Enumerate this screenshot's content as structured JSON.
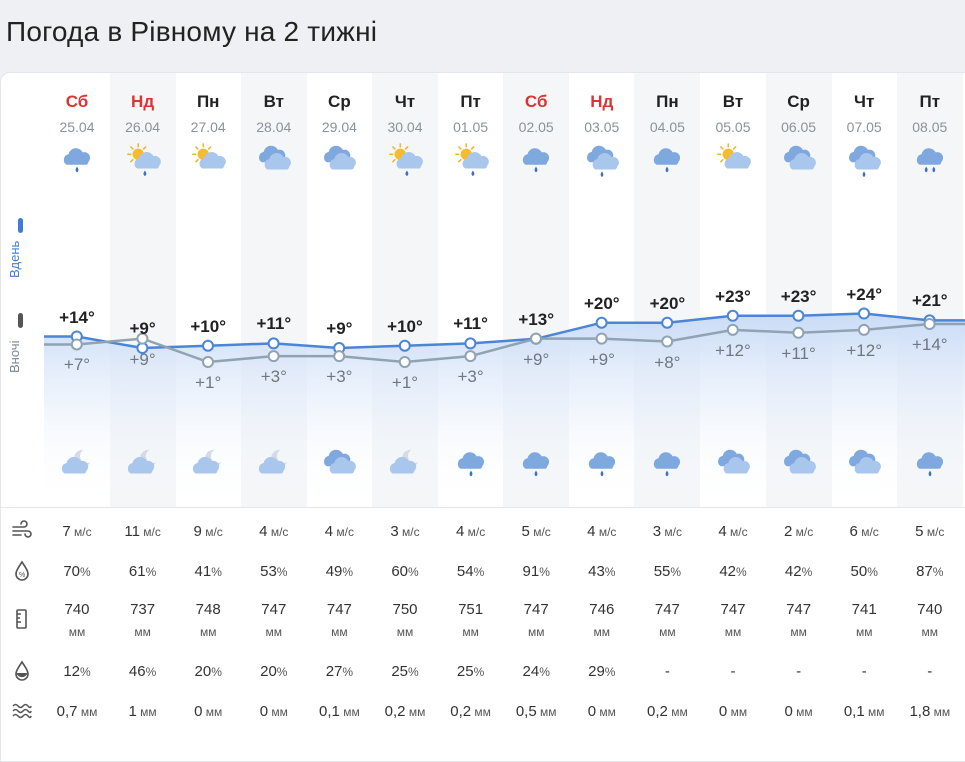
{
  "title": "Погода в Рівному на 2 тижні",
  "side": {
    "day": "Вдень",
    "night": "Вночі"
  },
  "colors": {
    "day_line": "#4a85d8",
    "night_line": "#8fa3b3",
    "weekend": "#dd3333",
    "stripe": "#f4f6f8"
  },
  "days": [
    {
      "dow": "Сб",
      "date": "25.04",
      "weekend": true,
      "day_icon": "cloud-rain-icon",
      "night_icon": "moon-cloud-icon",
      "t_day": "+14°",
      "t_night": "+7°",
      "wind": "7",
      "wind_u": "м/с",
      "hum": "70",
      "hum_u": "%",
      "press": "740",
      "press_u": "мм",
      "precip_p": "12",
      "precip_p_u": "%",
      "precip": "0,7",
      "precip_u": "мм"
    },
    {
      "dow": "Нд",
      "date": "26.04",
      "weekend": true,
      "day_icon": "sun-cloud-rain-icon",
      "night_icon": "moon-cloud-icon",
      "t_day": "+9°",
      "t_night": "+9°",
      "wind": "11",
      "wind_u": "м/с",
      "hum": "61",
      "hum_u": "%",
      "press": "737",
      "press_u": "мм",
      "precip_p": "46",
      "precip_p_u": "%",
      "precip": "1",
      "precip_u": "мм"
    },
    {
      "dow": "Пн",
      "date": "27.04",
      "weekend": false,
      "day_icon": "sun-cloud-icon",
      "night_icon": "moon-cloud-icon",
      "t_day": "+10°",
      "t_night": "+1°",
      "wind": "9",
      "wind_u": "м/с",
      "hum": "41",
      "hum_u": "%",
      "press": "748",
      "press_u": "мм",
      "precip_p": "20",
      "precip_p_u": "%",
      "precip": "0",
      "precip_u": "мм"
    },
    {
      "dow": "Вт",
      "date": "28.04",
      "weekend": false,
      "day_icon": "clouds-icon",
      "night_icon": "moon-cloud-icon",
      "t_day": "+11°",
      "t_night": "+3°",
      "wind": "4",
      "wind_u": "м/с",
      "hum": "53",
      "hum_u": "%",
      "press": "747",
      "press_u": "мм",
      "precip_p": "20",
      "precip_p_u": "%",
      "precip": "0",
      "precip_u": "мм"
    },
    {
      "dow": "Ср",
      "date": "29.04",
      "weekend": false,
      "day_icon": "clouds-icon",
      "night_icon": "clouds-icon",
      "t_day": "+9°",
      "t_night": "+3°",
      "wind": "4",
      "wind_u": "м/с",
      "hum": "49",
      "hum_u": "%",
      "press": "747",
      "press_u": "мм",
      "precip_p": "27",
      "precip_p_u": "%",
      "precip": "0,1",
      "precip_u": "мм"
    },
    {
      "dow": "Чт",
      "date": "30.04",
      "weekend": false,
      "day_icon": "sun-cloud-rain-icon",
      "night_icon": "moon-cloud-icon",
      "t_day": "+10°",
      "t_night": "+1°",
      "wind": "3",
      "wind_u": "м/с",
      "hum": "60",
      "hum_u": "%",
      "press": "750",
      "press_u": "мм",
      "precip_p": "25",
      "precip_p_u": "%",
      "precip": "0,2",
      "precip_u": "мм"
    },
    {
      "dow": "Пт",
      "date": "01.05",
      "weekend": false,
      "day_icon": "sun-cloud-rain-icon",
      "night_icon": "cloud-rain-icon",
      "t_day": "+11°",
      "t_night": "+3°",
      "wind": "4",
      "wind_u": "м/с",
      "hum": "54",
      "hum_u": "%",
      "press": "751",
      "press_u": "мм",
      "precip_p": "25",
      "precip_p_u": "%",
      "precip": "0,2",
      "precip_u": "мм"
    },
    {
      "dow": "Сб",
      "date": "02.05",
      "weekend": true,
      "day_icon": "cloud-rain-icon",
      "night_icon": "cloud-rain-icon",
      "t_day": "+13°",
      "t_night": "+9°",
      "wind": "5",
      "wind_u": "м/с",
      "hum": "91",
      "hum_u": "%",
      "press": "747",
      "press_u": "мм",
      "precip_p": "24",
      "precip_p_u": "%",
      "precip": "0,5",
      "precip_u": "мм"
    },
    {
      "dow": "Нд",
      "date": "03.05",
      "weekend": true,
      "day_icon": "clouds-rain-icon",
      "night_icon": "cloud-rain-icon",
      "t_day": "+20°",
      "t_night": "+9°",
      "wind": "4",
      "wind_u": "м/с",
      "hum": "43",
      "hum_u": "%",
      "press": "746",
      "press_u": "мм",
      "precip_p": "29",
      "precip_p_u": "%",
      "precip": "0",
      "precip_u": "мм"
    },
    {
      "dow": "Пн",
      "date": "04.05",
      "weekend": false,
      "day_icon": "cloud-rain-icon",
      "night_icon": "cloud-rain-icon",
      "t_day": "+20°",
      "t_night": "+8°",
      "wind": "3",
      "wind_u": "м/с",
      "hum": "55",
      "hum_u": "%",
      "press": "747",
      "press_u": "мм",
      "precip_p": "-",
      "precip_p_u": "",
      "precip": "0,2",
      "precip_u": "мм"
    },
    {
      "dow": "Вт",
      "date": "05.05",
      "weekend": false,
      "day_icon": "sun-cloud-icon",
      "night_icon": "clouds-icon",
      "t_day": "+23°",
      "t_night": "+12°",
      "wind": "4",
      "wind_u": "м/с",
      "hum": "42",
      "hum_u": "%",
      "press": "747",
      "press_u": "мм",
      "precip_p": "-",
      "precip_p_u": "",
      "precip": "0",
      "precip_u": "мм"
    },
    {
      "dow": "Ср",
      "date": "06.05",
      "weekend": false,
      "day_icon": "clouds-icon",
      "night_icon": "clouds-icon",
      "t_day": "+23°",
      "t_night": "+11°",
      "wind": "2",
      "wind_u": "м/с",
      "hum": "42",
      "hum_u": "%",
      "press": "747",
      "press_u": "мм",
      "precip_p": "-",
      "precip_p_u": "",
      "precip": "0",
      "precip_u": "мм"
    },
    {
      "dow": "Чт",
      "date": "07.05",
      "weekend": false,
      "day_icon": "clouds-rain-icon",
      "night_icon": "clouds-icon",
      "t_day": "+24°",
      "t_night": "+12°",
      "wind": "6",
      "wind_u": "м/с",
      "hum": "50",
      "hum_u": "%",
      "press": "741",
      "press_u": "мм",
      "precip_p": "-",
      "precip_p_u": "",
      "precip": "0,1",
      "precip_u": "мм"
    },
    {
      "dow": "Пт",
      "date": "08.05",
      "weekend": false,
      "day_icon": "cloud-heavy-rain-icon",
      "night_icon": "cloud-rain-icon",
      "t_day": "+21°",
      "t_night": "+14°",
      "wind": "5",
      "wind_u": "м/с",
      "hum": "87",
      "hum_u": "%",
      "press": "740",
      "press_u": "мм",
      "precip_p": "-",
      "precip_p_u": "",
      "precip": "1,8",
      "precip_u": "мм"
    }
  ],
  "chart_data": {
    "type": "line",
    "categories": [
      "25.04",
      "26.04",
      "27.04",
      "28.04",
      "29.04",
      "30.04",
      "01.05",
      "02.05",
      "03.05",
      "04.05",
      "05.05",
      "06.05",
      "07.05",
      "08.05"
    ],
    "series": [
      {
        "name": "Вдень",
        "values": [
          14,
          9,
          10,
          11,
          9,
          10,
          11,
          13,
          20,
          20,
          23,
          23,
          24,
          21
        ]
      },
      {
        "name": "Вночі",
        "values": [
          7,
          9,
          1,
          3,
          3,
          1,
          3,
          9,
          9,
          8,
          12,
          11,
          12,
          14
        ]
      }
    ]
  },
  "rows": {
    "wind": "wind-icon",
    "humidity": "humidity-icon",
    "pressure": "pressure-icon",
    "precip_prob": "drop-icon",
    "precip": "waves-icon"
  }
}
